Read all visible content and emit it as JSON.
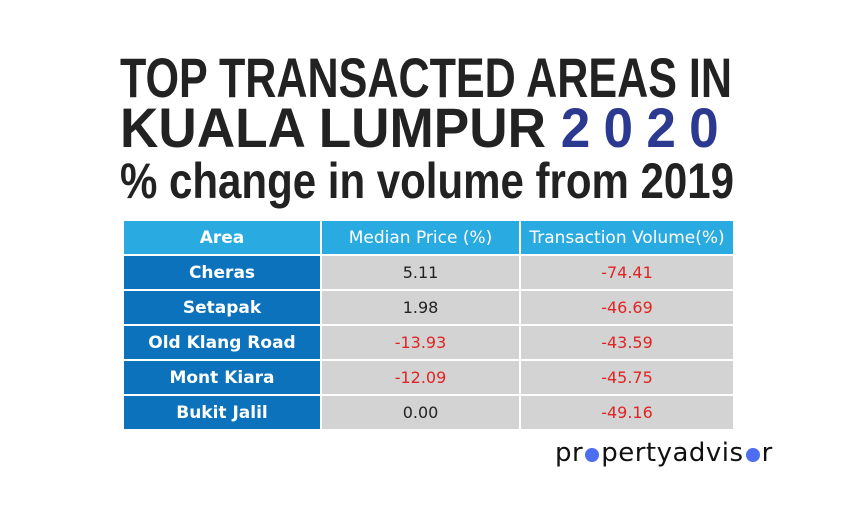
{
  "title": {
    "line1": "TOP TRANSACTED AREAS IN",
    "line2": "KUALA LUMPUR",
    "year": "2020",
    "line3": "% change in volume from 2019"
  },
  "colors": {
    "header": "#29abe2",
    "area_cell": "#0b72bb",
    "value_cell": "#d3d3d3",
    "negative": "#e02424",
    "year": "#2b3990"
  },
  "chart_data": {
    "type": "table",
    "columns": [
      "Area",
      "Median Price (%)",
      "Transaction Volume(%)"
    ],
    "rows": [
      {
        "area": "Cheras",
        "median_price": "5.11",
        "volume": "-74.41"
      },
      {
        "area": "Setapak",
        "median_price": "1.98",
        "volume": "-46.69"
      },
      {
        "area": "Old Klang Road",
        "median_price": "-13.93",
        "volume": "-43.59"
      },
      {
        "area": "Mont Kiara",
        "median_price": "-12.09",
        "volume": "-45.75"
      },
      {
        "area": "Bukit Jalil",
        "median_price": "0.00",
        "volume": "-49.16"
      }
    ]
  },
  "logo": {
    "text": "propertyadvisor"
  }
}
